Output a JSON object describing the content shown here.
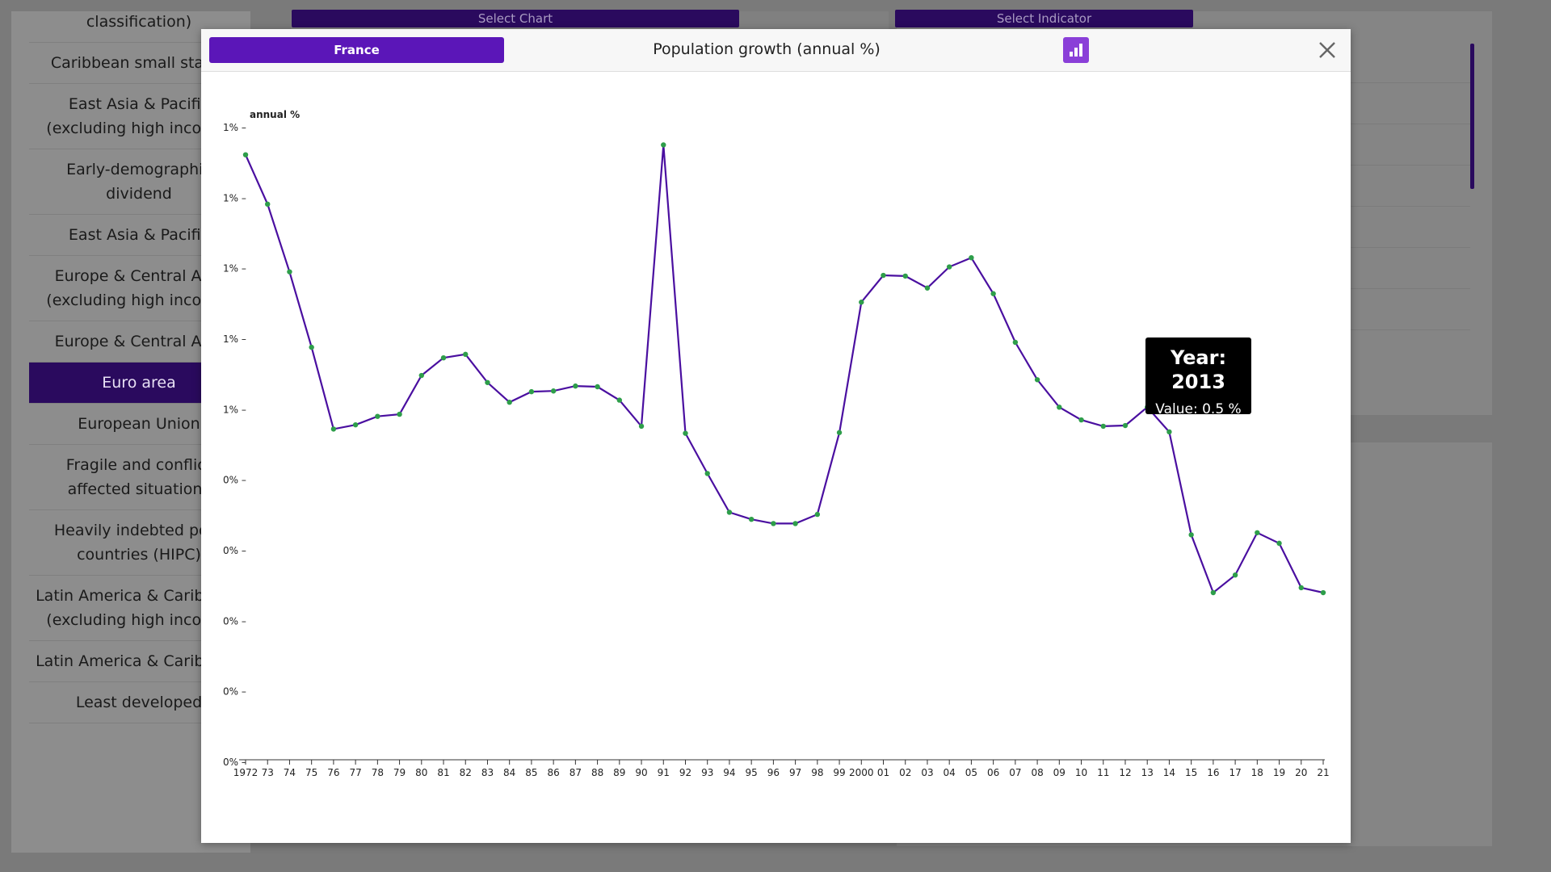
{
  "top_buttons": {
    "select_chart": "Select Chart",
    "select_indicator": "Select Indicator"
  },
  "sidebar": {
    "items": [
      {
        "label": "classification)",
        "active": false
      },
      {
        "label": "Caribbean small states",
        "active": false
      },
      {
        "label": "East Asia & Pacific (excluding high income)",
        "active": false
      },
      {
        "label": "Early-demographic dividend",
        "active": false
      },
      {
        "label": "East Asia & Pacific",
        "active": false
      },
      {
        "label": "Europe & Central Asia (excluding high income)",
        "active": false
      },
      {
        "label": "Europe & Central Asia",
        "active": false
      },
      {
        "label": "Euro area",
        "active": true
      },
      {
        "label": "European Union",
        "active": false
      },
      {
        "label": "Fragile and conflict affected situations",
        "active": false
      },
      {
        "label": "Heavily indebted poor countries (HIPC)",
        "active": false
      },
      {
        "label": "Latin America & Caribbean (excluding high income)",
        "active": false
      },
      {
        "label": "Latin America & Caribbean",
        "active": false
      },
      {
        "label": "Least developed",
        "active": false
      }
    ]
  },
  "modal": {
    "country_button": "France",
    "title": "Population growth (annual %)",
    "chart_type_icon": "bar-chart-icon",
    "close_icon": "close-icon",
    "tooltip": {
      "year_line": "Year: 2013",
      "value_line": "Value: 0.5 %"
    }
  },
  "colors": {
    "accent": "#5b16b8",
    "line": "#4a0fa0",
    "point": "#2e9e4a",
    "dim_accent": "#2a0a5e"
  },
  "chart_data": {
    "type": "line",
    "ylabel": "annual %",
    "ylim": [
      0,
      0.9
    ],
    "y_ticks": [
      "1% –",
      "1% –",
      "1% –",
      "1% –",
      "1% –",
      "0% –",
      "0% –",
      "0% –",
      "0% –",
      "0% –"
    ],
    "x_tick_labels": [
      "1972",
      "73",
      "74",
      "75",
      "76",
      "77",
      "78",
      "79",
      "80",
      "81",
      "82",
      "83",
      "84",
      "85",
      "86",
      "87",
      "88",
      "89",
      "90",
      "91",
      "92",
      "93",
      "94",
      "95",
      "96",
      "97",
      "98",
      "99",
      "2000",
      "01",
      "02",
      "03",
      "04",
      "05",
      "06",
      "07",
      "08",
      "09",
      "10",
      "11",
      "12",
      "13",
      "14",
      "15",
      "16",
      "17",
      "18",
      "19",
      "20",
      "21"
    ],
    "x": [
      1972,
      1973,
      1974,
      1975,
      1976,
      1977,
      1978,
      1979,
      1980,
      1981,
      1982,
      1983,
      1984,
      1985,
      1986,
      1987,
      1988,
      1989,
      1990,
      1991,
      1992,
      1993,
      1994,
      1995,
      1996,
      1997,
      1998,
      1999,
      2000,
      2001,
      2002,
      2003,
      2004,
      2005,
      2006,
      2007,
      2008,
      2009,
      2010,
      2011,
      2012,
      2013,
      2014,
      2015,
      2016,
      2017,
      2018,
      2019,
      2020,
      2021
    ],
    "series": [
      {
        "values": [
          0.858,
          0.788,
          0.692,
          0.585,
          0.469,
          0.475,
          0.487,
          0.49,
          0.545,
          0.57,
          0.575,
          0.535,
          0.507,
          0.522,
          0.523,
          0.53,
          0.529,
          0.51,
          0.473,
          0.872,
          0.463,
          0.406,
          0.351,
          0.341,
          0.335,
          0.335,
          0.348,
          0.464,
          0.649,
          0.687,
          0.686,
          0.669,
          0.699,
          0.712,
          0.661,
          0.592,
          0.539,
          0.5,
          0.482,
          0.473,
          0.474,
          0.5,
          0.465,
          0.319,
          0.237,
          0.262,
          0.322,
          0.307,
          0.244,
          0.237
        ]
      }
    ]
  }
}
